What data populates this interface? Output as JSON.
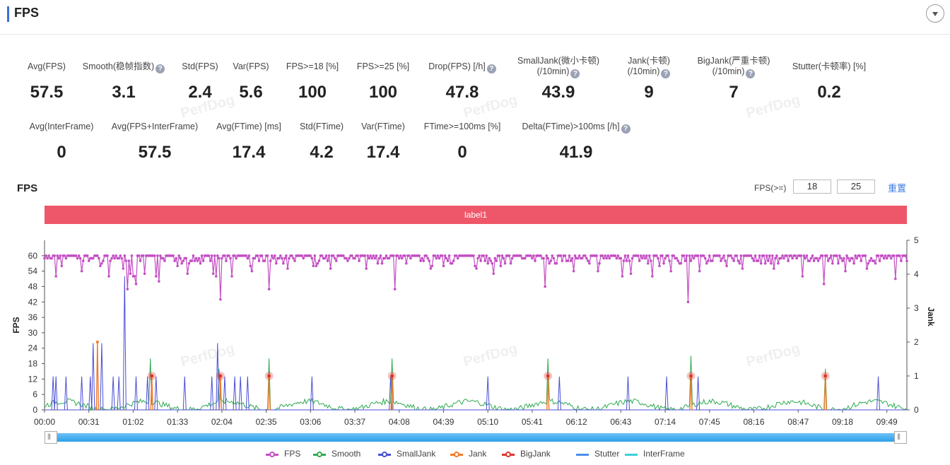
{
  "header": {
    "title": "FPS"
  },
  "stats_row1": [
    {
      "label": "Avg(FPS)",
      "value": "57.5",
      "help": false
    },
    {
      "label": "Smooth(稳帧指数)",
      "value": "3.1",
      "help": true
    },
    {
      "label": "Std(FPS)",
      "value": "2.4",
      "help": false
    },
    {
      "label": "Var(FPS)",
      "value": "5.6",
      "help": false
    },
    {
      "label": "FPS>=18 [%]",
      "value": "100",
      "help": false
    },
    {
      "label": "FPS>=25 [%]",
      "value": "100",
      "help": false
    },
    {
      "label": "Drop(FPS) [/h]",
      "value": "47.8",
      "help": true
    },
    {
      "label": "SmallJank(微小卡顿)",
      "label2": "(/10min)",
      "value": "43.9",
      "help": true
    },
    {
      "label": "Jank(卡顿)",
      "label2": "(/10min)",
      "value": "9",
      "help": true
    },
    {
      "label": "BigJank(严重卡顿)",
      "label2": "(/10min)",
      "value": "7",
      "help": true
    },
    {
      "label": "Stutter(卡顿率) [%]",
      "value": "0.2",
      "help": false
    }
  ],
  "stats_row2": [
    {
      "label": "Avg(InterFrame)",
      "value": "0",
      "help": false
    },
    {
      "label": "Avg(FPS+InterFrame)",
      "value": "57.5",
      "help": false
    },
    {
      "label": "Avg(FTime) [ms]",
      "value": "17.4",
      "help": false
    },
    {
      "label": "Std(FTime)",
      "value": "4.2",
      "help": false
    },
    {
      "label": "Var(FTime)",
      "value": "17.4",
      "help": false
    },
    {
      "label": "FTime>=100ms [%]",
      "value": "0",
      "help": false
    },
    {
      "label": "Delta(FTime)>100ms [/h]",
      "value": "41.9",
      "help": true
    }
  ],
  "help_glyph": "?",
  "chart_section": {
    "title": "FPS",
    "fps_threshold_label": "FPS(>=)",
    "threshold_low": "18",
    "threshold_high": "25",
    "reset_label": "重置",
    "label_bar": "label1",
    "watermark": "PerfDog"
  },
  "colors": {
    "FPS": "#c44fc4",
    "Smooth": "#2eaa4f",
    "SmallJank": "#4a4fd6",
    "Jank": "#f07b2a",
    "BigJank": "#e0352b",
    "Stutter": "#4a90e8",
    "InterFrame": "#3bd0d8",
    "label_bar": "#ee5769"
  },
  "chart_data": {
    "type": "line",
    "ylabel": "FPS",
    "y2label": "Jank",
    "ylim": [
      0,
      66
    ],
    "y2lim": [
      0,
      5
    ],
    "yticks": [
      "0",
      "6",
      "12",
      "18",
      "24",
      "30",
      "36",
      "42",
      "48",
      "54",
      "60"
    ],
    "y2ticks": [
      "0",
      "1",
      "2",
      "3",
      "4",
      "5"
    ],
    "xticks": [
      "00:00",
      "00:31",
      "01:02",
      "01:33",
      "02:04",
      "02:35",
      "03:06",
      "03:37",
      "04:08",
      "04:39",
      "05:10",
      "05:41",
      "06:12",
      "06:43",
      "07:14",
      "07:45",
      "08:16",
      "08:47",
      "09:18",
      "09:49"
    ],
    "duration_s": 603,
    "legend": [
      "FPS",
      "Smooth",
      "SmallJank",
      "Jank",
      "BigJank",
      "Stutter",
      "InterFrame"
    ],
    "fps_dips": [
      {
        "t": 8,
        "v": 52
      },
      {
        "t": 26,
        "v": 54
      },
      {
        "t": 45,
        "v": 52
      },
      {
        "t": 60,
        "v": 53
      },
      {
        "t": 62,
        "v": 52
      },
      {
        "t": 63,
        "v": 52
      },
      {
        "t": 55,
        "v": 55
      },
      {
        "t": 58,
        "v": 47
      },
      {
        "t": 64,
        "v": 49
      },
      {
        "t": 70,
        "v": 53
      },
      {
        "t": 78,
        "v": 52
      },
      {
        "t": 80,
        "v": 50
      },
      {
        "t": 93,
        "v": 56
      },
      {
        "t": 100,
        "v": 53
      },
      {
        "t": 118,
        "v": 53
      },
      {
        "t": 120,
        "v": 52
      },
      {
        "t": 123,
        "v": 43
      },
      {
        "t": 131,
        "v": 52
      },
      {
        "t": 145,
        "v": 54
      },
      {
        "t": 157,
        "v": 47
      },
      {
        "t": 170,
        "v": 55
      },
      {
        "t": 200,
        "v": 55
      },
      {
        "t": 225,
        "v": 55
      },
      {
        "t": 245,
        "v": 47
      },
      {
        "t": 270,
        "v": 55
      },
      {
        "t": 302,
        "v": 55
      },
      {
        "t": 314,
        "v": 53
      },
      {
        "t": 350,
        "v": 48
      },
      {
        "t": 370,
        "v": 54
      },
      {
        "t": 387,
        "v": 54
      },
      {
        "t": 404,
        "v": 52
      },
      {
        "t": 410,
        "v": 53
      },
      {
        "t": 425,
        "v": 52
      },
      {
        "t": 438,
        "v": 54
      },
      {
        "t": 450,
        "v": 42
      },
      {
        "t": 458,
        "v": 54
      },
      {
        "t": 488,
        "v": 55
      },
      {
        "t": 510,
        "v": 55
      },
      {
        "t": 530,
        "v": 52
      },
      {
        "t": 545,
        "v": 49
      },
      {
        "t": 560,
        "v": 54
      },
      {
        "t": 575,
        "v": 55
      },
      {
        "t": 595,
        "v": 51
      }
    ],
    "smooth_spikes": [
      {
        "t": 74,
        "v": 20
      },
      {
        "t": 122,
        "v": 16
      },
      {
        "t": 157,
        "v": 20
      },
      {
        "t": 243,
        "v": 20
      },
      {
        "t": 352,
        "v": 20
      },
      {
        "t": 452,
        "v": 21
      },
      {
        "t": 546,
        "v": 16
      }
    ],
    "smalljank_spikes": [
      {
        "t": 6,
        "v": 13
      },
      {
        "t": 8,
        "v": 13
      },
      {
        "t": 15,
        "v": 13
      },
      {
        "t": 26,
        "v": 13
      },
      {
        "t": 32,
        "v": 13
      },
      {
        "t": 34,
        "v": 26
      },
      {
        "t": 40,
        "v": 26
      },
      {
        "t": 48,
        "v": 13
      },
      {
        "t": 52,
        "v": 13
      },
      {
        "t": 56,
        "v": 52
      },
      {
        "t": 64,
        "v": 13
      },
      {
        "t": 72,
        "v": 13
      },
      {
        "t": 78,
        "v": 13
      },
      {
        "t": 98,
        "v": 13
      },
      {
        "t": 117,
        "v": 13
      },
      {
        "t": 121,
        "v": 26
      },
      {
        "t": 126,
        "v": 13
      },
      {
        "t": 133,
        "v": 13
      },
      {
        "t": 137,
        "v": 13
      },
      {
        "t": 142,
        "v": 13
      },
      {
        "t": 187,
        "v": 13
      },
      {
        "t": 242,
        "v": 13
      },
      {
        "t": 310,
        "v": 13
      },
      {
        "t": 360,
        "v": 13
      },
      {
        "t": 408,
        "v": 13
      },
      {
        "t": 435,
        "v": 13
      },
      {
        "t": 457,
        "v": 13
      },
      {
        "t": 583,
        "v": 13
      }
    ],
    "jank_spikes": [
      {
        "t": 37,
        "v": 2
      }
    ],
    "bigjank_events": [
      {
        "t": 75
      },
      {
        "t": 123
      },
      {
        "t": 157
      },
      {
        "t": 243
      },
      {
        "t": 352
      },
      {
        "t": 452
      },
      {
        "t": 546
      }
    ]
  }
}
